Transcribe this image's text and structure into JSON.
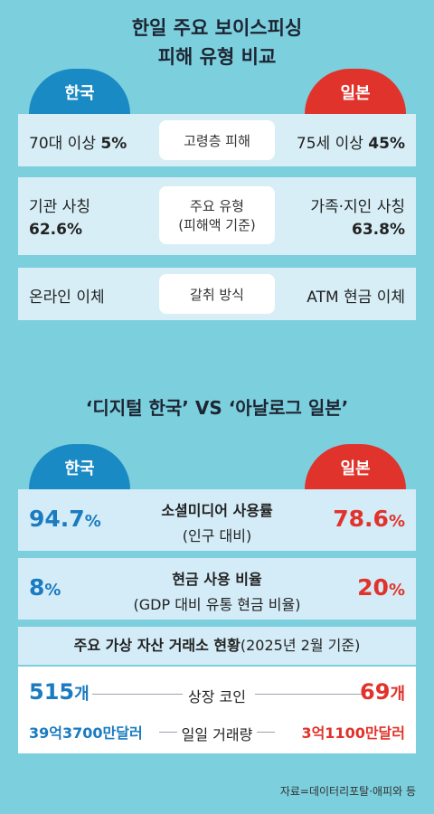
{
  "title_line1": "한일 주요 보이스피싱",
  "title_line2": "피해 유형 비교",
  "tabs": {
    "korea": "한국",
    "japan": "일본"
  },
  "section1": [
    {
      "left_text": "70대 이상",
      "left_value": "5%",
      "center": "고령층 피해",
      "right_text": "75세 이상",
      "right_value": "45%"
    },
    {
      "left_text": "기관 사칭",
      "left_value": "62.6%",
      "center_line1": "주요 유형",
      "center_line2": "(피해액 기준)",
      "right_text": "가족·지인 사칭",
      "right_value": "63.8%"
    },
    {
      "left_text": "온라인 이체",
      "center": "갈취 방식",
      "right_text": "ATM 현금 이체"
    }
  ],
  "section2_title": "‘디지털 한국’ VS ‘아날로그 일본’",
  "section2": [
    {
      "korea_value": "94.7",
      "korea_unit": "%",
      "label": "소셜미디어 사용률",
      "sub": "(인구 대비)",
      "japan_value": "78.6",
      "japan_unit": "%"
    },
    {
      "korea_value": "8",
      "korea_unit": "%",
      "label": "현금 사용 비율",
      "sub": "(GDP 대비 유통 현금 비율)",
      "japan_value": "20",
      "japan_unit": "%"
    }
  ],
  "exchange": {
    "heading": "주요 가상 자산 거래소 현황",
    "heading_note": "(2025년 2월 기준)",
    "rows": [
      {
        "korea": "515",
        "korea_unit": "개",
        "label": "상장 코인",
        "japan": "69",
        "japan_unit": "개"
      },
      {
        "korea": "39억3700만달러",
        "label": "일일 거래량",
        "japan": "3억1100만달러"
      }
    ]
  },
  "source": "자료=데이터리포탈·애피와 등",
  "colors": {
    "background": "#7ccfdd",
    "korea": "#1a8ac4",
    "japan": "#e0332b"
  }
}
